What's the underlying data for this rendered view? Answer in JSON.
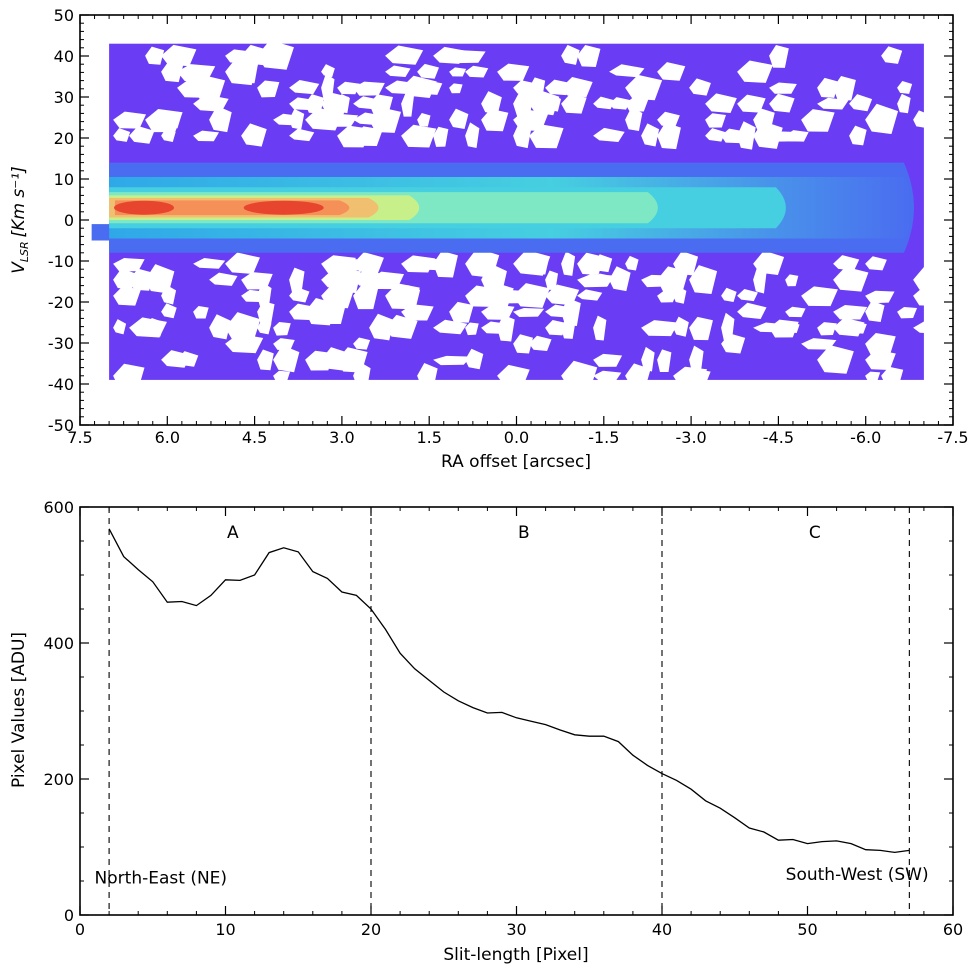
{
  "chart_data": [
    {
      "type": "heatmap",
      "title": "",
      "xlabel": "RA offset [arcsec]",
      "ylabel_main": "V",
      "ylabel_sub": "LSR",
      "ylabel_unit": "[Km s⁻¹]",
      "xlim": [
        7.5,
        -7.5
      ],
      "ylim": [
        -50,
        50
      ],
      "x_ticks": [
        7.5,
        6.0,
        4.5,
        3.0,
        1.5,
        0.0,
        -1.5,
        -3.0,
        -4.5,
        -6.0,
        -7.5
      ],
      "x_tick_labels": [
        "7.5",
        "6.0",
        "4.5",
        "3.0",
        "1.5",
        "0.0",
        "-1.5",
        "-3.0",
        "-4.5",
        "-6.0",
        "-7.5"
      ],
      "y_ticks": [
        -50,
        -40,
        -30,
        -20,
        -10,
        0,
        10,
        20,
        30,
        40,
        50
      ],
      "y_tick_labels": [
        "-50",
        "-40",
        "-30",
        "-20",
        "-10",
        "0",
        "10",
        "20",
        "30",
        "40",
        "50"
      ],
      "data_extent": {
        "x": [
          7.0,
          -7.0
        ],
        "y": [
          -39,
          43
        ]
      },
      "emission_ridge": {
        "center_velocity": 3,
        "peak_positions_arcsec": [
          6.4,
          4.0
        ],
        "peak_level": "red",
        "decline_toward": "negative RA offset"
      },
      "colormap": [
        "#6a3df5",
        "#4a6cf0",
        "#2fa8e8",
        "#46cfe0",
        "#7ee8c4",
        "#c8f08a",
        "#f0c070",
        "#f59058",
        "#e8452e"
      ]
    },
    {
      "type": "line",
      "title": "",
      "xlabel": "Slit-length [Pixel]",
      "ylabel": "Pixel Values [ADU]",
      "xlim": [
        0,
        60
      ],
      "ylim": [
        0,
        600
      ],
      "x_ticks": [
        0,
        10,
        20,
        30,
        40,
        50,
        60
      ],
      "x_tick_labels": [
        "0",
        "10",
        "20",
        "30",
        "40",
        "50",
        "60"
      ],
      "y_ticks": [
        0,
        200,
        400,
        600
      ],
      "y_tick_labels": [
        "0",
        "200",
        "400",
        "600"
      ],
      "series": [
        {
          "x": [
            2,
            3,
            4,
            5,
            6,
            7,
            8,
            9,
            10,
            11,
            12,
            13,
            14,
            15,
            16,
            17,
            18,
            19,
            20,
            21,
            22,
            23,
            24,
            25,
            26,
            27,
            28,
            29,
            30,
            31,
            32,
            33,
            34,
            35,
            36,
            37,
            38,
            39,
            40,
            41,
            42,
            43,
            44,
            45,
            46,
            47,
            48,
            49,
            50,
            51,
            52,
            53,
            54,
            55,
            56,
            57
          ],
          "y": [
            568,
            527,
            508,
            490,
            460,
            461,
            455,
            470,
            493,
            492,
            500,
            533,
            540,
            534,
            505,
            495,
            475,
            470,
            450,
            420,
            385,
            362,
            345,
            328,
            315,
            305,
            297,
            298,
            290,
            285,
            280,
            272,
            265,
            263,
            263,
            255,
            235,
            220,
            208,
            198,
            185,
            168,
            157,
            143,
            128,
            122,
            110,
            111,
            105,
            108,
            109,
            105,
            96,
            95,
            92,
            95
          ]
        }
      ],
      "vlines": [
        2,
        20,
        40,
        57
      ],
      "region_labels": [
        {
          "text": "A",
          "x": 10.5,
          "y": 563
        },
        {
          "text": "B",
          "x": 30.5,
          "y": 563
        },
        {
          "text": "C",
          "x": 50.5,
          "y": 563
        }
      ],
      "annotations": [
        {
          "text": "North-East (NE)",
          "x": 1,
          "y": 55
        },
        {
          "text": "South-West (SW)",
          "x": 48.5,
          "y": 60
        }
      ]
    }
  ]
}
